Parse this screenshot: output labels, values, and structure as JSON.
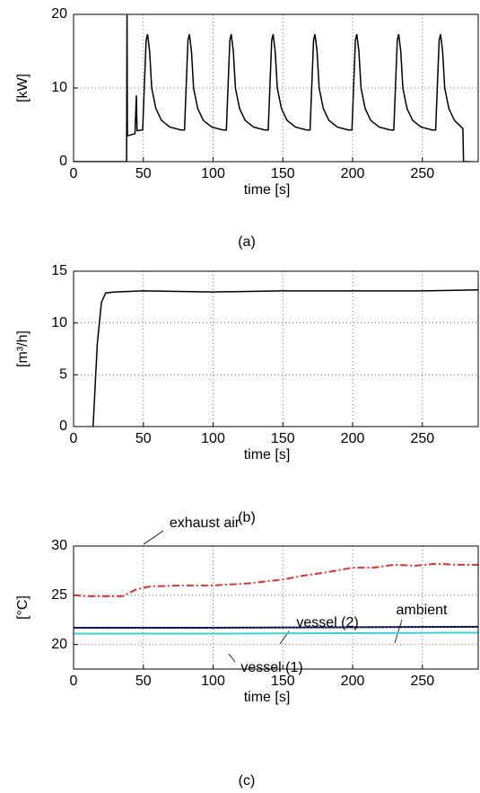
{
  "chart_data": [
    {
      "type": "line",
      "caption": "(a)",
      "xlabel": "time [s]",
      "ylabel": "[kW]",
      "xlim": [
        0,
        290
      ],
      "xticks": [
        0,
        50,
        100,
        150,
        200,
        250
      ],
      "ylim": [
        0,
        20
      ],
      "yticks": [
        0,
        10,
        20
      ],
      "grid": true,
      "series": [
        {
          "name": null,
          "color": "#000000",
          "linestyle": "solid",
          "x": [
            0,
            38,
            38.3,
            38.6,
            44,
            45,
            45.5,
            49.5,
            52,
            53,
            54.5,
            56,
            59,
            63,
            69,
            77,
            79.5,
            82,
            83,
            84.5,
            86,
            89,
            93,
            99,
            107,
            109.5,
            112,
            113,
            114.5,
            116,
            119,
            123,
            129,
            137,
            139.5,
            142,
            143,
            144.5,
            146,
            149,
            153,
            159,
            167,
            169.5,
            172,
            173,
            174.5,
            176,
            179,
            183,
            189,
            197,
            199.5,
            202,
            203,
            204.5,
            206,
            209,
            213,
            219,
            227,
            229.5,
            232,
            233,
            234.5,
            236,
            239,
            243,
            249,
            257,
            259.5,
            262,
            263,
            264.5,
            266,
            269,
            273,
            279,
            279.5,
            285
          ],
          "values": [
            0,
            0,
            20,
            3.5,
            3.8,
            9,
            4.2,
            4.3,
            16.5,
            17.3,
            15,
            10,
            7.2,
            5.6,
            4.7,
            4.3,
            4.3,
            16.5,
            17.3,
            15,
            10,
            7.2,
            5.6,
            4.7,
            4.3,
            4.3,
            16.5,
            17.3,
            15,
            10,
            7.2,
            5.6,
            4.7,
            4.3,
            4.3,
            16.5,
            17.3,
            15,
            10,
            7.2,
            5.6,
            4.7,
            4.3,
            4.3,
            16.5,
            17.3,
            15,
            10,
            7.2,
            5.6,
            4.7,
            4.3,
            4.3,
            16.5,
            17.3,
            15,
            10,
            7.2,
            5.6,
            4.7,
            4.3,
            4.3,
            16.5,
            17.3,
            15,
            10,
            7.2,
            5.6,
            4.7,
            4.3,
            4.3,
            16.5,
            17.3,
            15,
            10,
            7.2,
            5.6,
            4.5,
            0,
            0
          ]
        }
      ]
    },
    {
      "type": "line",
      "caption": "(b)",
      "xlabel": "time [s]",
      "ylabel": "[m³/h]",
      "xlim": [
        0,
        290
      ],
      "xticks": [
        0,
        50,
        100,
        150,
        200,
        250
      ],
      "ylim": [
        0,
        15
      ],
      "yticks": [
        0,
        5,
        10,
        15
      ],
      "grid": true,
      "series": [
        {
          "name": null,
          "color": "#000000",
          "linestyle": "solid",
          "x": [
            14,
            17,
            20,
            23,
            30,
            50,
            100,
            150,
            200,
            250,
            290
          ],
          "values": [
            0,
            8,
            12,
            12.9,
            13.0,
            13.1,
            13.0,
            13.1,
            13.1,
            13.1,
            13.2
          ]
        }
      ]
    },
    {
      "type": "line",
      "caption": "(c)",
      "xlabel": "time [s]",
      "ylabel": "[°C]",
      "xlim": [
        0,
        290
      ],
      "xticks": [
        0,
        50,
        100,
        150,
        200,
        250
      ],
      "ylim": [
        17.5,
        30
      ],
      "yticks": [
        20,
        25,
        30
      ],
      "grid": true,
      "series": [
        {
          "name": "exhaust air",
          "color": "#e03030",
          "linestyle": "dash-dot",
          "x": [
            0,
            10,
            35,
            45,
            55,
            80,
            100,
            125,
            150,
            165,
            180,
            200,
            215,
            230,
            245,
            260,
            275,
            290
          ],
          "values": [
            25,
            24.9,
            24.9,
            25.6,
            25.9,
            26.0,
            26.0,
            26.2,
            26.6,
            27.0,
            27.3,
            27.8,
            27.8,
            28.1,
            28.0,
            28.2,
            28.1,
            28.1
          ]
        },
        {
          "name": "vessel (2)",
          "color": "#1c2c8c",
          "linestyle": "solid",
          "x": [
            0,
            100,
            200,
            290
          ],
          "values": [
            21.7,
            21.7,
            21.75,
            21.8
          ]
        },
        {
          "name": "ambient",
          "color": "#000000",
          "linestyle": "dotted",
          "x": [
            0,
            100,
            200,
            290
          ],
          "values": [
            21.7,
            21.7,
            21.75,
            21.8
          ]
        },
        {
          "name": "vessel (1)",
          "color": "#40d0d0",
          "linestyle": "solid",
          "x": [
            0,
            100,
            200,
            290
          ],
          "values": [
            21.1,
            21.1,
            21.15,
            21.2
          ]
        }
      ]
    }
  ]
}
